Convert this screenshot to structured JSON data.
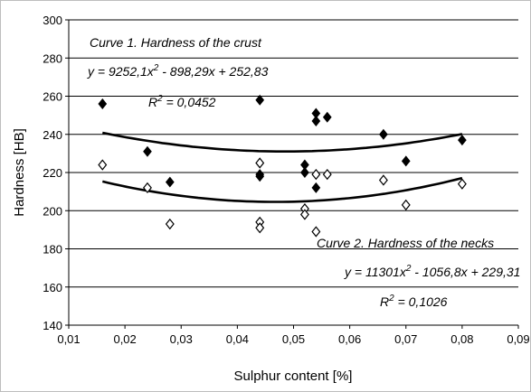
{
  "chart_data": {
    "type": "scatter",
    "xlabel": "Sulphur content [%]",
    "ylabel": "Hardness [HB]",
    "xlim": [
      0.01,
      0.09
    ],
    "ylim": [
      140,
      300
    ],
    "xticks": [
      "0,01",
      "0,02",
      "0,03",
      "0,04",
      "0,05",
      "0,06",
      "0,07",
      "0,08",
      "0,09"
    ],
    "yticks": [
      "140",
      "160",
      "180",
      "200",
      "220",
      "240",
      "260",
      "280",
      "300"
    ],
    "grid": "horizontal",
    "series": [
      {
        "marker": "filled-diamond",
        "color": "#000000",
        "points": [
          [
            0.016,
            256
          ],
          [
            0.024,
            231
          ],
          [
            0.028,
            215
          ],
          [
            0.044,
            258
          ],
          [
            0.044,
            218
          ],
          [
            0.044,
            219
          ],
          [
            0.052,
            224
          ],
          [
            0.052,
            220
          ],
          [
            0.054,
            251
          ],
          [
            0.054,
            247
          ],
          [
            0.054,
            212
          ],
          [
            0.056,
            249
          ],
          [
            0.066,
            240
          ],
          [
            0.07,
            226
          ],
          [
            0.08,
            237
          ]
        ],
        "trend": {
          "a": 9252.1,
          "b": -898.29,
          "c": 252.83,
          "x_range": [
            0.016,
            0.08
          ]
        }
      },
      {
        "marker": "open-diamond",
        "color": "#000000",
        "points": [
          [
            0.016,
            224
          ],
          [
            0.024,
            212
          ],
          [
            0.028,
            193
          ],
          [
            0.044,
            225
          ],
          [
            0.044,
            194
          ],
          [
            0.044,
            191
          ],
          [
            0.052,
            201
          ],
          [
            0.052,
            198
          ],
          [
            0.054,
            219
          ],
          [
            0.054,
            189
          ],
          [
            0.056,
            219
          ],
          [
            0.066,
            216
          ],
          [
            0.07,
            203
          ],
          [
            0.08,
            214
          ]
        ],
        "trend": {
          "a": 11301,
          "b": -1056.8,
          "c": 229.31,
          "x_range": [
            0.016,
            0.08
          ]
        }
      }
    ],
    "annotations": {
      "curve1_title": "Curve 1. Hardness of the crust",
      "curve1_eq_a": "y = 9252,1x",
      "curve1_eq_b": " - 898,29x + 252,83",
      "curve1_r": "R",
      "curve1_r_val": " = 0,0452",
      "curve2_title": "Curve 2. Hardness of the necks",
      "curve2_eq_a": "y = 11301x",
      "curve2_eq_b": " - 1056,8x + 229,31",
      "curve2_r": "R",
      "curve2_r_val": " = 0,1026",
      "superscript": "2"
    }
  }
}
